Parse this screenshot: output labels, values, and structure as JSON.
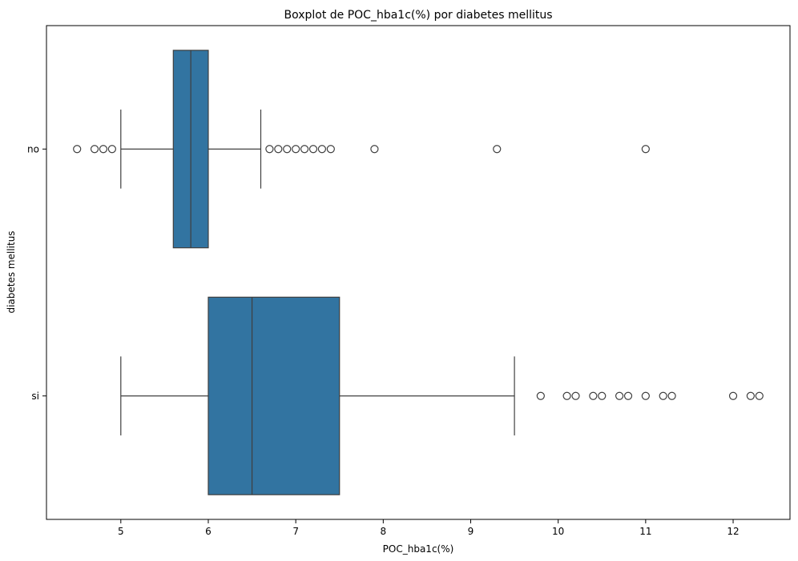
{
  "chart_data": {
    "type": "boxplot",
    "orientation": "horizontal",
    "title": "Boxplot de POC_hba1c(%) por diabetes mellitus",
    "xlabel": "POC_hba1c(%)",
    "ylabel": "diabetes mellitus",
    "xlim": [
      4.15,
      12.65
    ],
    "xticks": [
      5,
      6,
      7,
      8,
      9,
      10,
      11,
      12
    ],
    "xtick_labels": [
      "5",
      "6",
      "7",
      "8",
      "9",
      "10",
      "11",
      "12"
    ],
    "categories": [
      "no",
      "si"
    ],
    "box_color": "#3274a1",
    "line_color": "#3f3f3f",
    "groups": [
      {
        "category": "no",
        "whisker_low": 5.0,
        "q1": 5.6,
        "median": 5.8,
        "q3": 6.0,
        "whisker_high": 6.6,
        "outliers": [
          4.5,
          4.7,
          4.8,
          4.9,
          6.7,
          6.8,
          6.9,
          7.0,
          7.1,
          7.2,
          7.3,
          7.4,
          7.9,
          9.3,
          11.0
        ]
      },
      {
        "category": "si",
        "whisker_low": 5.0,
        "q1": 6.0,
        "median": 6.5,
        "q3": 7.5,
        "whisker_high": 9.5,
        "outliers": [
          9.8,
          10.1,
          10.2,
          10.4,
          10.5,
          10.7,
          10.8,
          11.0,
          11.2,
          11.3,
          12.0,
          12.2,
          12.3
        ]
      }
    ]
  }
}
